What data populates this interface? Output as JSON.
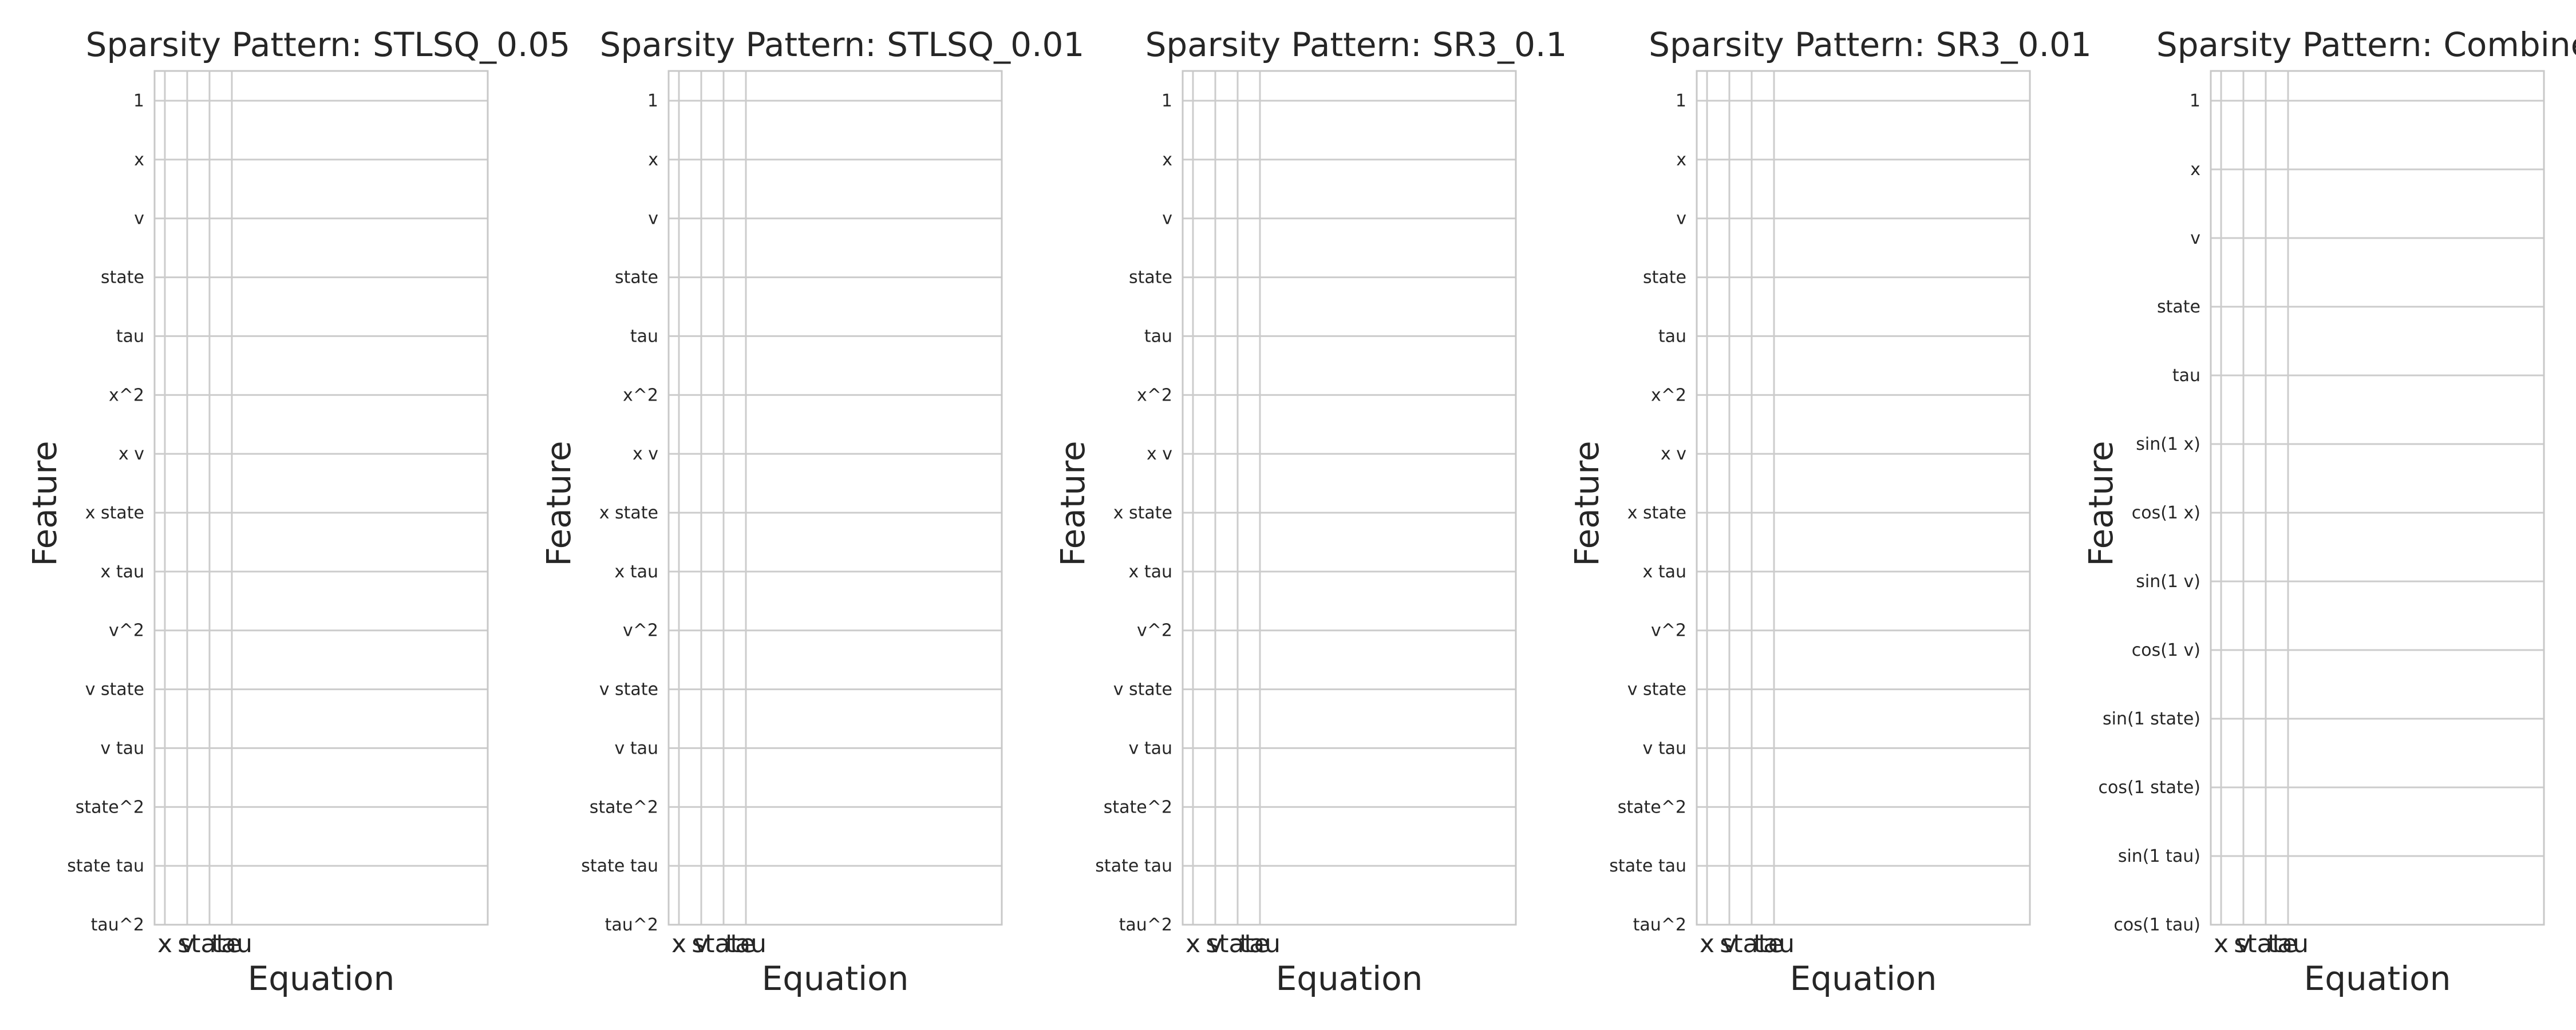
{
  "chart_data": [
    {
      "type": "heatmap",
      "title": "Sparsity Pattern: STLSQ_0.05",
      "xlabel": "Equation",
      "ylabel": "Feature",
      "x_categories": [
        "x",
        "v",
        "state",
        "tau"
      ],
      "y_categories": [
        "1",
        "x",
        "v",
        "state",
        "tau",
        "x^2",
        "x v",
        "x state",
        "x tau",
        "v^2",
        "v state",
        "v tau",
        "state^2",
        "state tau",
        "tau^2"
      ],
      "values": [],
      "grid": true
    },
    {
      "type": "heatmap",
      "title": "Sparsity Pattern: STLSQ_0.01",
      "xlabel": "Equation",
      "ylabel": "Feature",
      "x_categories": [
        "x",
        "v",
        "state",
        "tau"
      ],
      "y_categories": [
        "1",
        "x",
        "v",
        "state",
        "tau",
        "x^2",
        "x v",
        "x state",
        "x tau",
        "v^2",
        "v state",
        "v tau",
        "state^2",
        "state tau",
        "tau^2"
      ],
      "values": [],
      "grid": true
    },
    {
      "type": "heatmap",
      "title": "Sparsity Pattern: SR3_0.1",
      "xlabel": "Equation",
      "ylabel": "Feature",
      "x_categories": [
        "x",
        "v",
        "state",
        "tau"
      ],
      "y_categories": [
        "1",
        "x",
        "v",
        "state",
        "tau",
        "x^2",
        "x v",
        "x state",
        "x tau",
        "v^2",
        "v state",
        "v tau",
        "state^2",
        "state tau",
        "tau^2"
      ],
      "values": [],
      "grid": true
    },
    {
      "type": "heatmap",
      "title": "Sparsity Pattern: SR3_0.01",
      "xlabel": "Equation",
      "ylabel": "Feature",
      "x_categories": [
        "x",
        "v",
        "state",
        "tau"
      ],
      "y_categories": [
        "1",
        "x",
        "v",
        "state",
        "tau",
        "x^2",
        "x v",
        "x state",
        "x tau",
        "v^2",
        "v state",
        "v tau",
        "state^2",
        "state tau",
        "tau^2"
      ],
      "values": [],
      "grid": true
    },
    {
      "type": "heatmap",
      "title": "Sparsity Pattern: Combined",
      "xlabel": "Equation",
      "ylabel": "Feature",
      "x_categories": [
        "x",
        "v",
        "state",
        "tau"
      ],
      "y_categories": [
        "1",
        "x",
        "v",
        "state",
        "tau",
        "sin(1 x)",
        "cos(1 x)",
        "sin(1 v)",
        "cos(1 v)",
        "sin(1 state)",
        "cos(1 state)",
        "sin(1 tau)",
        "cos(1 tau)"
      ],
      "values": [],
      "grid": true
    }
  ]
}
